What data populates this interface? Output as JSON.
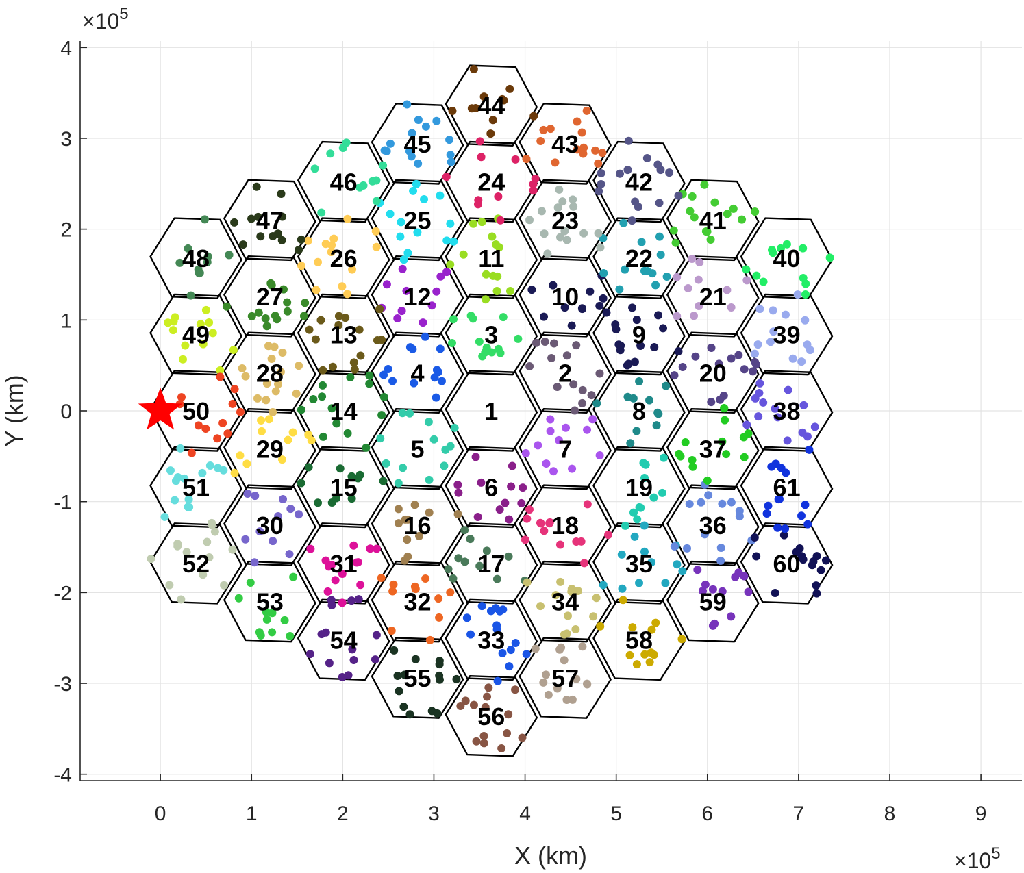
{
  "chart_data": {
    "type": "scatter",
    "xlabel": "X (km)",
    "ylabel": "Y (km)",
    "x_exponent_base": "×10",
    "x_exponent_power": "5",
    "y_exponent_base": "×10",
    "y_exponent_power": "5",
    "xlim": [
      -0.88,
      9.45
    ],
    "ylim": [
      -4.07,
      4.07
    ],
    "xticks": [
      0,
      1,
      2,
      3,
      4,
      5,
      6,
      7,
      8,
      9
    ],
    "xtick_labels": [
      "0",
      "1",
      "2",
      "3",
      "4",
      "5",
      "6",
      "7",
      "8",
      "9"
    ],
    "yticks": [
      -4,
      -3,
      -2,
      -1,
      0,
      1,
      2,
      3,
      4
    ],
    "ytick_labels": [
      "-4",
      "-3",
      "-2",
      "-1",
      "0",
      "1",
      "2",
      "3",
      "4"
    ],
    "grid": true,
    "hex_radius": 0.5,
    "star": {
      "x": 0,
      "y": 0,
      "color": "#ff0000"
    },
    "cells": [
      {
        "id": "1",
        "x": 3.63,
        "y": 0.0,
        "color": "#888888"
      },
      {
        "id": "2",
        "x": 4.44,
        "y": 0.42,
        "color": "#6b5a75"
      },
      {
        "id": "3",
        "x": 3.63,
        "y": 0.84,
        "color": "#33dd66"
      },
      {
        "id": "4",
        "x": 2.82,
        "y": 0.42,
        "color": "#1a5ae6"
      },
      {
        "id": "5",
        "x": 2.82,
        "y": -0.42,
        "color": "#33ccaa"
      },
      {
        "id": "6",
        "x": 3.63,
        "y": -0.84,
        "color": "#8a1f8a"
      },
      {
        "id": "7",
        "x": 4.44,
        "y": -0.42,
        "color": "#aa55ee"
      },
      {
        "id": "8",
        "x": 5.25,
        "y": 0.0,
        "color": "#1f8a8a"
      },
      {
        "id": "9",
        "x": 5.25,
        "y": 0.84,
        "color": "#1a1a55"
      },
      {
        "id": "10",
        "x": 4.44,
        "y": 1.26,
        "color": "#1a1a55"
      },
      {
        "id": "11",
        "x": 3.63,
        "y": 1.68,
        "color": "#99dd22"
      },
      {
        "id": "12",
        "x": 2.82,
        "y": 1.26,
        "color": "#9922cc"
      },
      {
        "id": "13",
        "x": 2.01,
        "y": 0.84,
        "color": "#6b5a1a"
      },
      {
        "id": "14",
        "x": 2.01,
        "y": 0.0,
        "color": "#228833"
      },
      {
        "id": "15",
        "x": 2.01,
        "y": -0.84,
        "color": "#1a6b33"
      },
      {
        "id": "16",
        "x": 2.82,
        "y": -1.26,
        "color": "#a08050"
      },
      {
        "id": "17",
        "x": 3.63,
        "y": -1.68,
        "color": "#4a7a5a"
      },
      {
        "id": "18",
        "x": 4.44,
        "y": -1.26,
        "color": "#e6337a"
      },
      {
        "id": "19",
        "x": 5.25,
        "y": -0.84,
        "color": "#22ccb0"
      },
      {
        "id": "20",
        "x": 6.06,
        "y": 0.42,
        "color": "#554488"
      },
      {
        "id": "21",
        "x": 6.06,
        "y": 1.26,
        "color": "#bb99cc"
      },
      {
        "id": "22",
        "x": 5.25,
        "y": 1.68,
        "color": "#22a0b0"
      },
      {
        "id": "23",
        "x": 4.44,
        "y": 2.1,
        "color": "#a8b8b0"
      },
      {
        "id": "24",
        "x": 3.63,
        "y": 2.52,
        "color": "#dd2266"
      },
      {
        "id": "25",
        "x": 2.82,
        "y": 2.1,
        "color": "#22ddee"
      },
      {
        "id": "26",
        "x": 2.01,
        "y": 1.68,
        "color": "#ffcc55"
      },
      {
        "id": "27",
        "x": 1.2,
        "y": 1.26,
        "color": "#3a8a2a"
      },
      {
        "id": "28",
        "x": 1.2,
        "y": 0.42,
        "color": "#ddbb66"
      },
      {
        "id": "29",
        "x": 1.2,
        "y": -0.42,
        "color": "#ffdd44"
      },
      {
        "id": "30",
        "x": 1.2,
        "y": -1.26,
        "color": "#7766cc"
      },
      {
        "id": "31",
        "x": 2.01,
        "y": -1.68,
        "color": "#dd1199"
      },
      {
        "id": "32",
        "x": 2.82,
        "y": -2.1,
        "color": "#ee6622"
      },
      {
        "id": "33",
        "x": 3.63,
        "y": -2.52,
        "color": "#1a55e6"
      },
      {
        "id": "34",
        "x": 4.44,
        "y": -2.1,
        "color": "#c8c070"
      },
      {
        "id": "35",
        "x": 5.25,
        "y": -1.68,
        "color": "#22a8c0"
      },
      {
        "id": "36",
        "x": 6.06,
        "y": -1.26,
        "color": "#6688dd"
      },
      {
        "id": "37",
        "x": 6.06,
        "y": -0.42,
        "color": "#22cc22"
      },
      {
        "id": "38",
        "x": 6.87,
        "y": 0.0,
        "color": "#6655dd"
      },
      {
        "id": "39",
        "x": 6.87,
        "y": 0.84,
        "color": "#99aaee"
      },
      {
        "id": "40",
        "x": 6.87,
        "y": 1.68,
        "color": "#22ee66"
      },
      {
        "id": "41",
        "x": 6.06,
        "y": 2.1,
        "color": "#44cc33"
      },
      {
        "id": "42",
        "x": 5.25,
        "y": 2.52,
        "color": "#555588"
      },
      {
        "id": "43",
        "x": 4.44,
        "y": 2.94,
        "color": "#e06630"
      },
      {
        "id": "44",
        "x": 3.63,
        "y": 3.36,
        "color": "#6b3a0a"
      },
      {
        "id": "45",
        "x": 2.82,
        "y": 2.94,
        "color": "#3399dd"
      },
      {
        "id": "46",
        "x": 2.01,
        "y": 2.52,
        "color": "#33dd99"
      },
      {
        "id": "47",
        "x": 1.2,
        "y": 2.1,
        "color": "#2a3a1a"
      },
      {
        "id": "48",
        "x": 0.39,
        "y": 1.68,
        "color": "#448855"
      },
      {
        "id": "49",
        "x": 0.39,
        "y": 0.84,
        "color": "#ccee22"
      },
      {
        "id": "50",
        "x": 0.39,
        "y": 0.0,
        "color": "#ee4422"
      },
      {
        "id": "51",
        "x": 0.39,
        "y": -0.84,
        "color": "#66dddd"
      },
      {
        "id": "52",
        "x": 0.39,
        "y": -1.68,
        "color": "#c0ccb0"
      },
      {
        "id": "53",
        "x": 1.2,
        "y": -2.1,
        "color": "#33cc44"
      },
      {
        "id": "54",
        "x": 2.01,
        "y": -2.52,
        "color": "#552288"
      },
      {
        "id": "55",
        "x": 2.82,
        "y": -2.94,
        "color": "#1a3322"
      },
      {
        "id": "56",
        "x": 3.63,
        "y": -3.36,
        "color": "#885544"
      },
      {
        "id": "57",
        "x": 4.44,
        "y": -2.94,
        "color": "#b0a090"
      },
      {
        "id": "58",
        "x": 5.25,
        "y": -2.52,
        "color": "#ccaa00"
      },
      {
        "id": "59",
        "x": 6.06,
        "y": -2.1,
        "color": "#7733bb"
      },
      {
        "id": "60",
        "x": 6.87,
        "y": -1.68,
        "color": "#111155"
      },
      {
        "id": "61",
        "x": 6.87,
        "y": -0.84,
        "color": "#1133dd"
      }
    ]
  }
}
